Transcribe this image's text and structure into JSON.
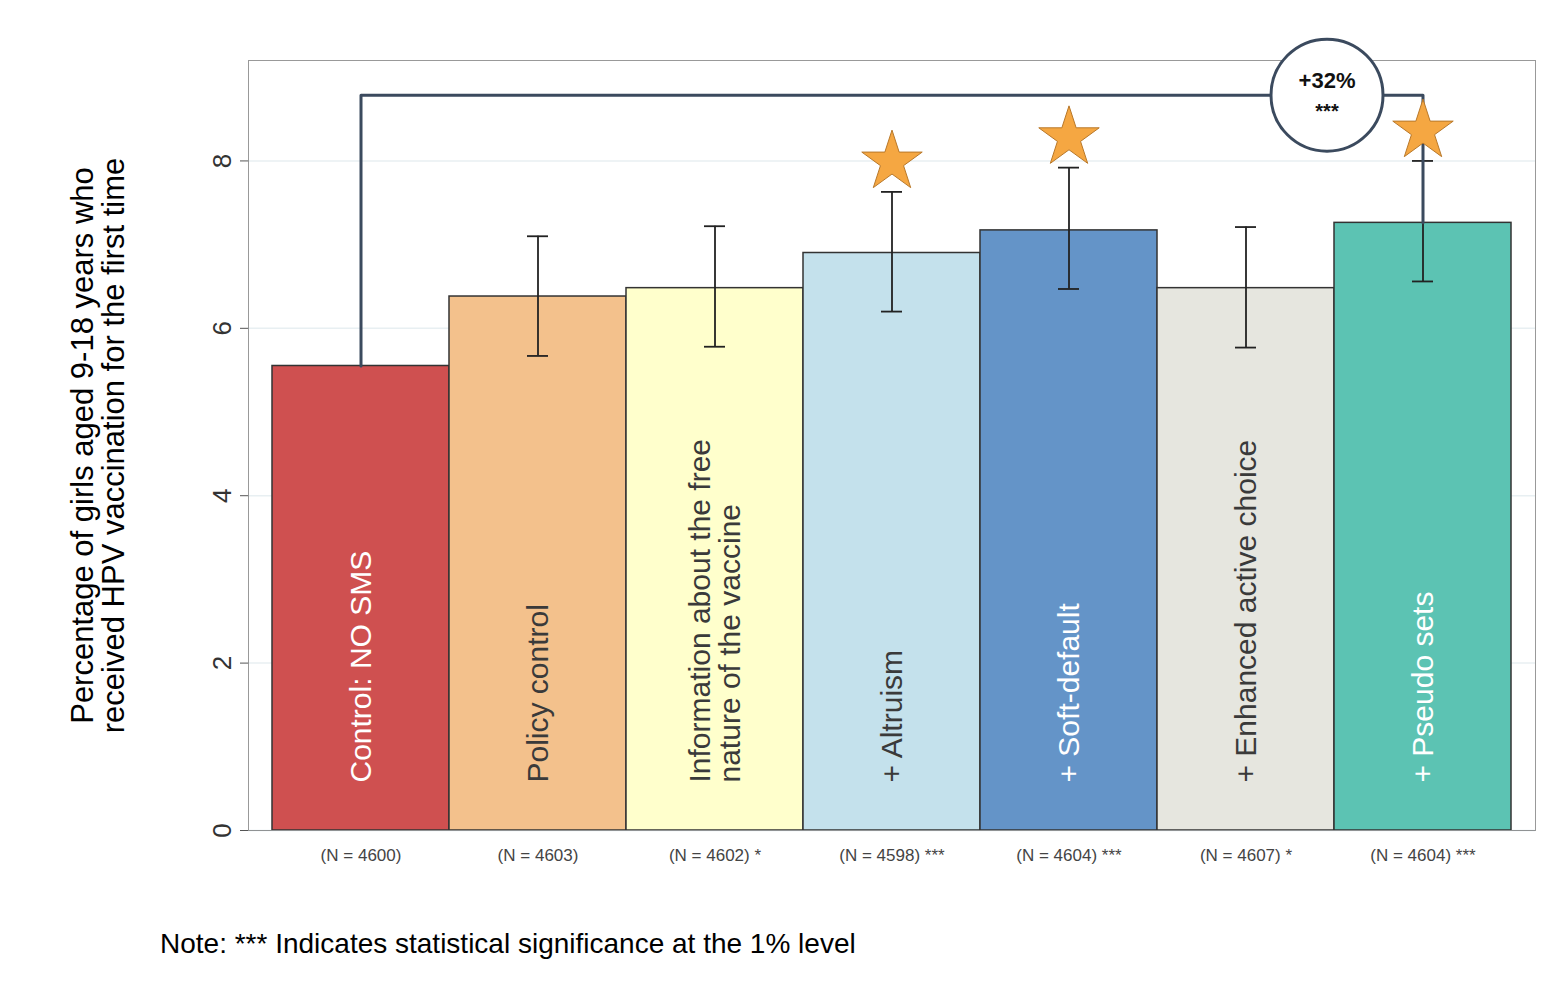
{
  "chart_data": {
    "type": "bar",
    "categories": [
      "Control: NO SMS",
      "Policy control",
      "Information about the free nature of the vaccine",
      "+ Altruism",
      "+ Soft-default",
      "+ Enhanced active choice",
      "+ Pseudo sets"
    ],
    "values": [
      5.55,
      6.38,
      6.48,
      6.9,
      7.17,
      6.48,
      7.26
    ],
    "error_low": [
      null,
      5.67,
      5.78,
      6.2,
      6.47,
      5.77,
      6.56
    ],
    "error_high": [
      null,
      7.1,
      7.22,
      7.63,
      7.92,
      7.21,
      8.0
    ],
    "n_labels": [
      "(N = 4600)",
      "(N = 4603)",
      "(N = 4602) *",
      "(N = 4598) ***",
      "(N = 4604) ***",
      "(N = 4607) *",
      "(N = 4604) ***"
    ],
    "highlighted": [
      false,
      false,
      false,
      true,
      true,
      false,
      true
    ],
    "colors": [
      "#CF5050",
      "#F3C18C",
      "#FFFFCC",
      "#C4E1EC",
      "#6494C8",
      "#E6E6DF",
      "#5CC3B3"
    ],
    "y_label": "Percentage of girls aged 9-18 years who received HPV vaccination for the first time",
    "ylim": [
      0,
      9.2
    ],
    "yticks": [
      0,
      2,
      4,
      6,
      8
    ],
    "grid": true,
    "annotation": {
      "text": "+32%",
      "significance": "***",
      "from": "Control: NO SMS",
      "to": "+ Pseudo sets"
    },
    "note": "Note: *** Indicates statistical significance at the 1% level"
  }
}
